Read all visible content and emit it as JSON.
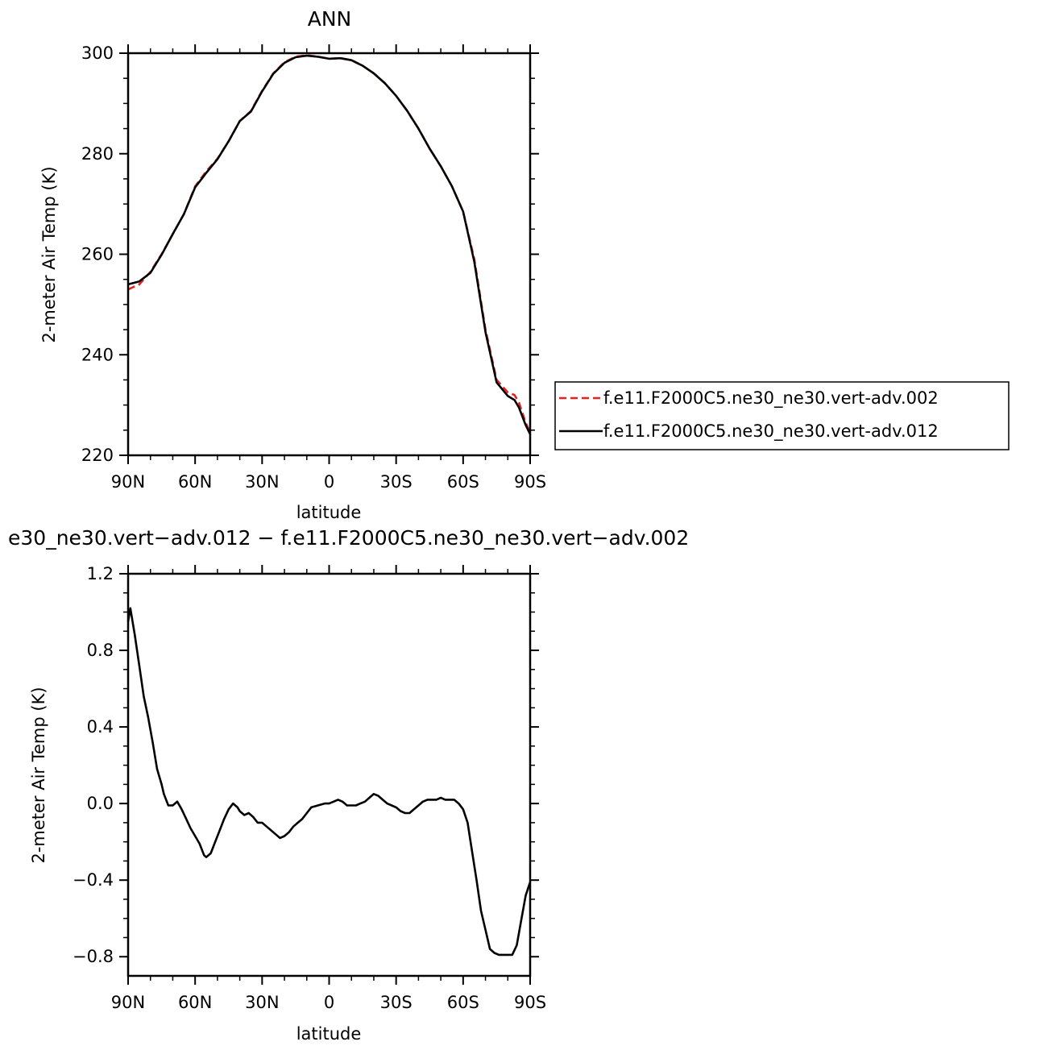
{
  "chart_data": [
    {
      "type": "line",
      "title": "ANN",
      "xlabel": "latitude",
      "ylabel": "2-meter Air Temp (K)",
      "xlim": [
        90,
        -90
      ],
      "ylim": [
        220,
        300
      ],
      "x_tick_values": [
        90,
        60,
        30,
        0,
        -30,
        -60,
        -90
      ],
      "x_tick_labels": [
        "90N",
        "60N",
        "30N",
        "0",
        "30S",
        "60S",
        "90S"
      ],
      "y_tick_values": [
        220,
        240,
        260,
        280,
        300
      ],
      "y_tick_labels": [
        "220",
        "240",
        "260",
        "280",
        "300"
      ],
      "grid": false,
      "legend_position": "right",
      "series": [
        {
          "name": "f.e11.F2000C5.ne30_ne30.vert-adv.002",
          "color": "#e8221c",
          "dash": "dashed",
          "x": [
            90,
            85,
            80,
            75,
            70,
            65,
            60,
            55,
            50,
            45,
            40,
            35,
            30,
            25,
            20,
            15,
            10,
            5,
            0,
            -5,
            -10,
            -15,
            -20,
            -25,
            -30,
            -35,
            -40,
            -45,
            -50,
            -55,
            -60,
            -65,
            -70,
            -75,
            -80,
            -83,
            -85,
            -88,
            -90
          ],
          "y": [
            253.0,
            254.0,
            256.5,
            260.0,
            264.0,
            268.0,
            273.5,
            276.5,
            279.0,
            282.5,
            286.5,
            288.5,
            292.5,
            296.0,
            298.2,
            299.3,
            299.6,
            299.3,
            298.9,
            299.0,
            298.6,
            297.5,
            296.0,
            294.0,
            291.5,
            288.5,
            285.0,
            281.0,
            277.5,
            273.5,
            268.5,
            259.0,
            245.0,
            235.0,
            232.5,
            232.0,
            230.5,
            226.5,
            224.5
          ]
        },
        {
          "name": "f.e11.F2000C5.ne30_ne30.vert-adv.012",
          "color": "#000000",
          "dash": "solid",
          "x": [
            90,
            85,
            80,
            75,
            70,
            65,
            60,
            55,
            50,
            45,
            40,
            35,
            30,
            25,
            20,
            15,
            10,
            5,
            0,
            -5,
            -10,
            -15,
            -20,
            -25,
            -30,
            -35,
            -40,
            -45,
            -50,
            -55,
            -60,
            -65,
            -70,
            -75,
            -80,
            -83,
            -85,
            -88,
            -90
          ],
          "y": [
            254.0,
            254.6,
            256.3,
            259.9,
            264.0,
            268.0,
            273.3,
            276.2,
            278.9,
            282.5,
            286.5,
            288.4,
            292.4,
            295.9,
            298.1,
            299.2,
            299.5,
            299.3,
            298.9,
            299.0,
            298.6,
            297.5,
            296.0,
            294.0,
            291.5,
            288.5,
            285.0,
            281.0,
            277.5,
            273.5,
            268.5,
            258.5,
            244.5,
            234.5,
            231.8,
            231.0,
            229.5,
            226.0,
            224.2
          ]
        }
      ]
    },
    {
      "type": "line",
      "title": "e30_ne30.vert−adv.012 − f.e11.F2000C5.ne30_ne30.vert−adv.002",
      "xlabel": "latitude",
      "ylabel": "2-meter Air Temp (K)",
      "xlim": [
        90,
        -90
      ],
      "ylim": [
        -0.9,
        1.2
      ],
      "x_tick_values": [
        90,
        60,
        30,
        0,
        -30,
        -60,
        -90
      ],
      "x_tick_labels": [
        "90N",
        "60N",
        "30N",
        "0",
        "30S",
        "60S",
        "90S"
      ],
      "y_tick_values": [
        -0.8,
        -0.4,
        0.0,
        0.4,
        0.8,
        1.2
      ],
      "y_tick_labels": [
        "−0.8",
        "−0.4",
        "0.0",
        "0.4",
        "0.8",
        "1.2"
      ],
      "grid": false,
      "series": [
        {
          "color": "#000000",
          "dash": "solid",
          "x": [
            90,
            89,
            87,
            85,
            83,
            81,
            79,
            77,
            75,
            74,
            72,
            70,
            68,
            66,
            64,
            62,
            60,
            58,
            56,
            55,
            53,
            51,
            49,
            47,
            45,
            43,
            41,
            40,
            38,
            36,
            34,
            32,
            30,
            28,
            26,
            24,
            22,
            20,
            18,
            16,
            14,
            12,
            10,
            8,
            5,
            2,
            0,
            -2,
            -4,
            -6,
            -8,
            -10,
            -12,
            -14,
            -16,
            -18,
            -20,
            -22,
            -24,
            -26,
            -28,
            -30,
            -32,
            -34,
            -36,
            -38,
            -40,
            -42,
            -44,
            -46,
            -48,
            -50,
            -52,
            -54,
            -56,
            -58,
            -60,
            -62,
            -64,
            -66,
            -68,
            -70,
            -72,
            -74,
            -76,
            -78,
            -80,
            -82,
            -84,
            -86,
            -88,
            -90
          ],
          "y": [
            0.95,
            1.02,
            0.88,
            0.72,
            0.56,
            0.45,
            0.32,
            0.18,
            0.1,
            0.05,
            -0.01,
            -0.01,
            0.01,
            -0.03,
            -0.08,
            -0.13,
            -0.17,
            -0.21,
            -0.27,
            -0.28,
            -0.26,
            -0.2,
            -0.14,
            -0.08,
            -0.03,
            0.0,
            -0.02,
            -0.04,
            -0.06,
            -0.05,
            -0.07,
            -0.1,
            -0.1,
            -0.12,
            -0.14,
            -0.16,
            -0.18,
            -0.17,
            -0.15,
            -0.12,
            -0.1,
            -0.08,
            -0.05,
            -0.02,
            -0.01,
            0.0,
            0.0,
            0.01,
            0.02,
            0.01,
            -0.01,
            -0.01,
            -0.01,
            0.0,
            0.01,
            0.03,
            0.05,
            0.04,
            0.02,
            0.0,
            -0.01,
            -0.02,
            -0.04,
            -0.05,
            -0.05,
            -0.03,
            -0.01,
            0.01,
            0.02,
            0.02,
            0.02,
            0.03,
            0.02,
            0.02,
            0.02,
            0.0,
            -0.03,
            -0.1,
            -0.25,
            -0.4,
            -0.56,
            -0.66,
            -0.76,
            -0.78,
            -0.79,
            -0.79,
            -0.79,
            -0.79,
            -0.74,
            -0.61,
            -0.48,
            -0.41
          ]
        }
      ]
    }
  ]
}
